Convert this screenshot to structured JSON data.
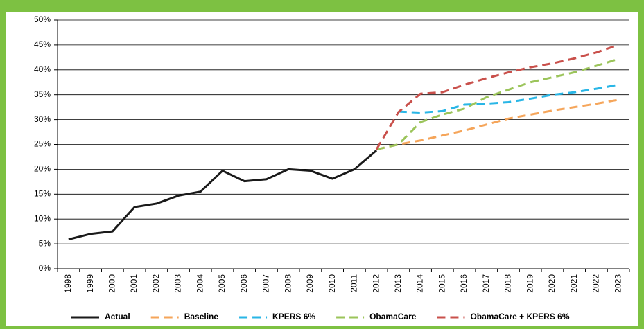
{
  "chart_data": {
    "type": "line",
    "categories": [
      "1998",
      "1999",
      "2000",
      "2001",
      "2002",
      "2003",
      "2004",
      "2005",
      "2006",
      "2007",
      "2008",
      "2009",
      "2010",
      "2011",
      "2012",
      "2013",
      "2014",
      "2015",
      "2016",
      "2017",
      "2018",
      "2019",
      "2020",
      "2021",
      "2022",
      "2023"
    ],
    "series": [
      {
        "name": "Actual",
        "color": "#1a1a1a",
        "dashed": false,
        "values": [
          5.9,
          7.0,
          7.5,
          12.4,
          13.1,
          14.7,
          15.5,
          19.7,
          17.6,
          18.0,
          20.0,
          19.7,
          18.1,
          20.0,
          23.8,
          null,
          null,
          null,
          null,
          null,
          null,
          null,
          null,
          null,
          null,
          null
        ]
      },
      {
        "name": "Baseline",
        "color": "#f5a55a",
        "dashed": true,
        "values": [
          null,
          null,
          null,
          null,
          null,
          null,
          null,
          null,
          null,
          null,
          null,
          null,
          null,
          null,
          24.0,
          25.0,
          25.8,
          26.8,
          27.8,
          29.0,
          30.2,
          31.0,
          31.8,
          32.5,
          33.2,
          34.0
        ]
      },
      {
        "name": "KPERS 6%",
        "color": "#29b6e6",
        "dashed": true,
        "values": [
          null,
          null,
          null,
          null,
          null,
          null,
          null,
          null,
          null,
          null,
          null,
          null,
          null,
          null,
          null,
          31.6,
          31.4,
          31.7,
          33.0,
          33.2,
          33.5,
          34.2,
          35.0,
          35.5,
          36.2,
          37.0
        ]
      },
      {
        "name": "ObamaCare",
        "color": "#9bc45a",
        "dashed": true,
        "values": [
          null,
          null,
          null,
          null,
          null,
          null,
          null,
          null,
          null,
          null,
          null,
          null,
          null,
          null,
          24.0,
          25.0,
          29.5,
          31.0,
          32.2,
          34.5,
          36.0,
          37.5,
          38.5,
          39.5,
          40.8,
          42.2
        ]
      },
      {
        "name": "ObamaCare + KPERS 6%",
        "color": "#c9504b",
        "dashed": true,
        "values": [
          null,
          null,
          null,
          null,
          null,
          null,
          null,
          null,
          null,
          null,
          null,
          null,
          null,
          null,
          24.0,
          31.5,
          35.2,
          35.5,
          37.0,
          38.3,
          39.5,
          40.5,
          41.3,
          42.3,
          43.5,
          45.0
        ]
      }
    ],
    "ylim": [
      0,
      50
    ],
    "yticks": [
      {
        "value": 0,
        "label": "0%"
      },
      {
        "value": 5,
        "label": "5%"
      },
      {
        "value": 10,
        "label": "10%"
      },
      {
        "value": 15,
        "label": "15%"
      },
      {
        "value": 20,
        "label": "20%"
      },
      {
        "value": 25,
        "label": "25%"
      },
      {
        "value": 30,
        "label": "30%"
      },
      {
        "value": 35,
        "label": "35%"
      },
      {
        "value": 40,
        "label": "40%"
      },
      {
        "value": 45,
        "label": "45%"
      },
      {
        "value": 50,
        "label": "50%"
      }
    ],
    "grid": true,
    "legend": "bottom"
  }
}
